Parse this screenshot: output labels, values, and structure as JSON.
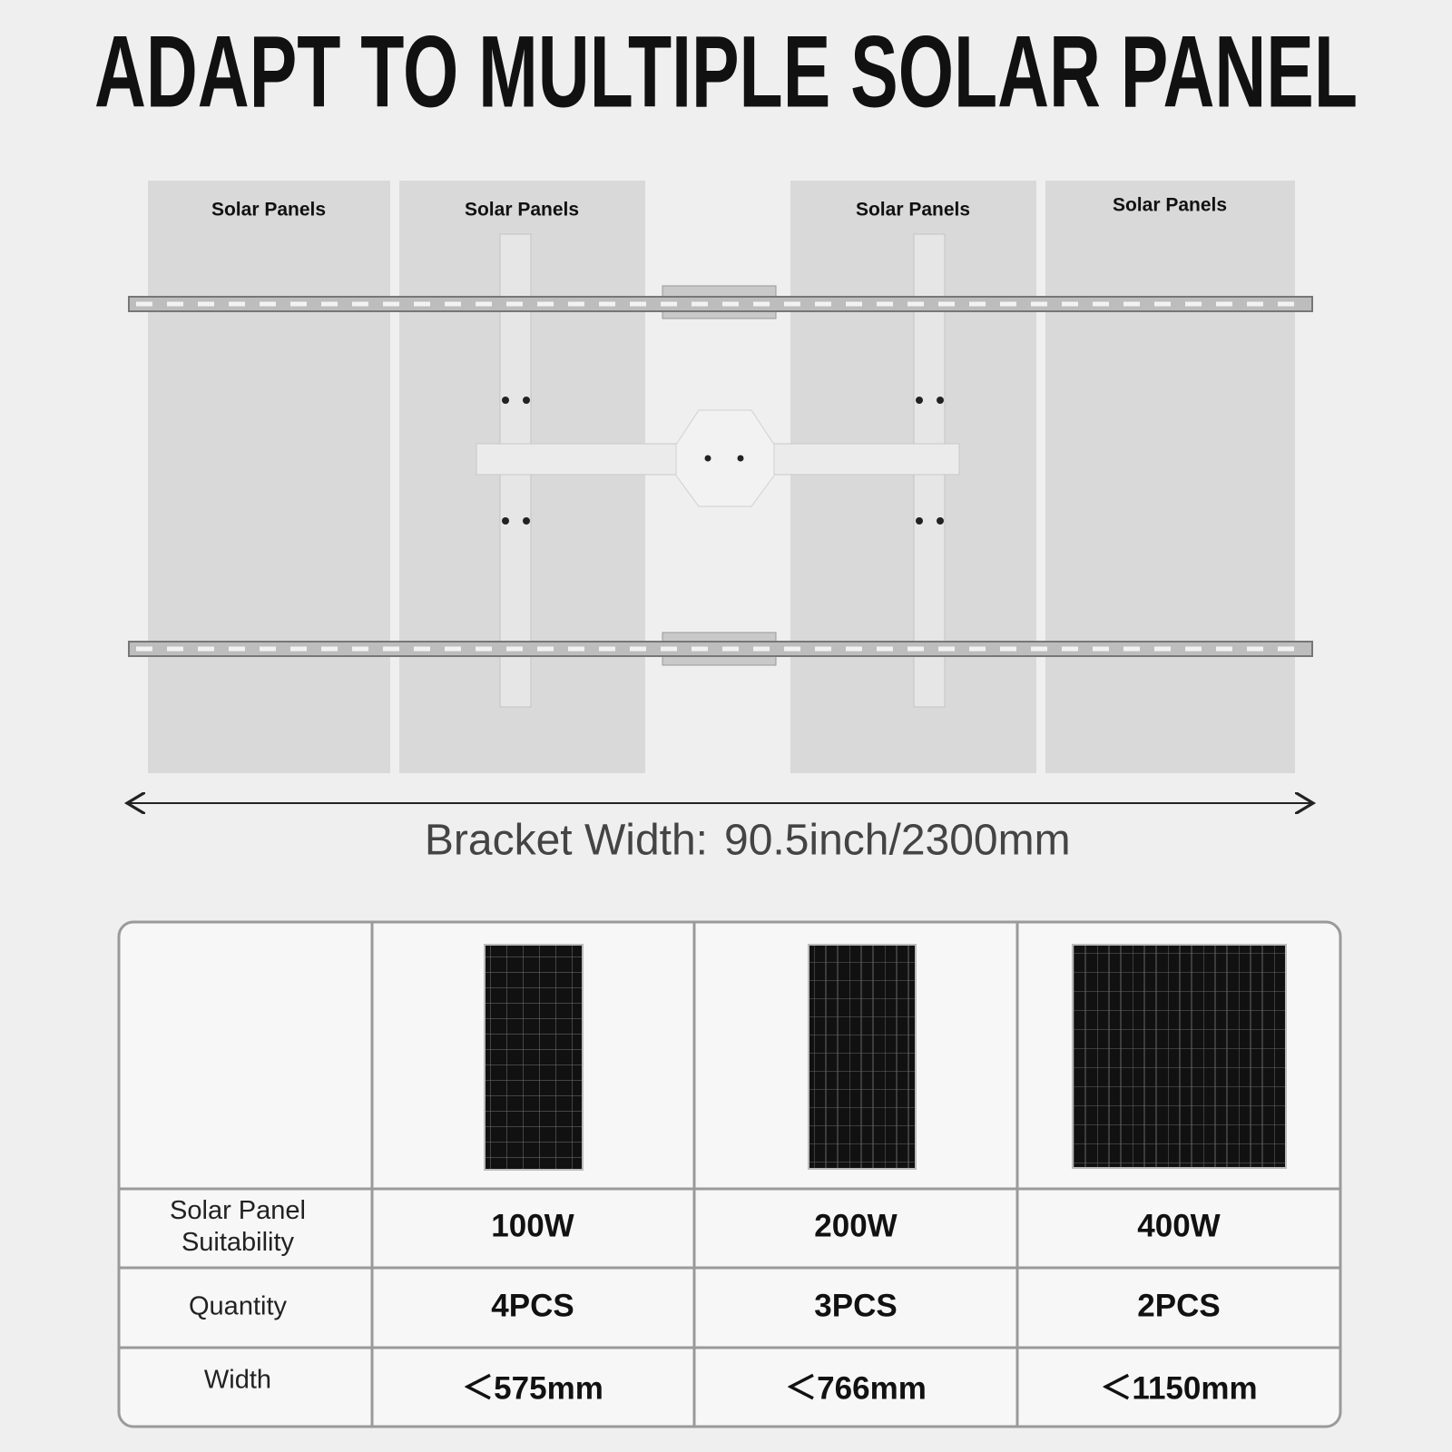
{
  "header": {
    "title": "ADAPT TO MULTIPLE SOLAR PANEL"
  },
  "diagram": {
    "panels": [
      "Solar Panels",
      "Solar Panels",
      "Solar Panels",
      "Solar Panels"
    ],
    "bracket_width": {
      "label": "Bracket Width:",
      "value": "90.5inch/2300mm"
    }
  },
  "table": {
    "rows": [
      {
        "label": [
          "Solar Panel",
          "Suitability"
        ],
        "cells": [
          "100W",
          "200W",
          "400W"
        ]
      },
      {
        "label": [
          "Quantity"
        ],
        "cells": [
          "4PCS",
          "3PCS",
          "2PCS"
        ]
      },
      {
        "label": [
          "Width"
        ],
        "cells": [
          "＜575mm",
          "＜766mm",
          "＜1150mm"
        ]
      }
    ]
  }
}
